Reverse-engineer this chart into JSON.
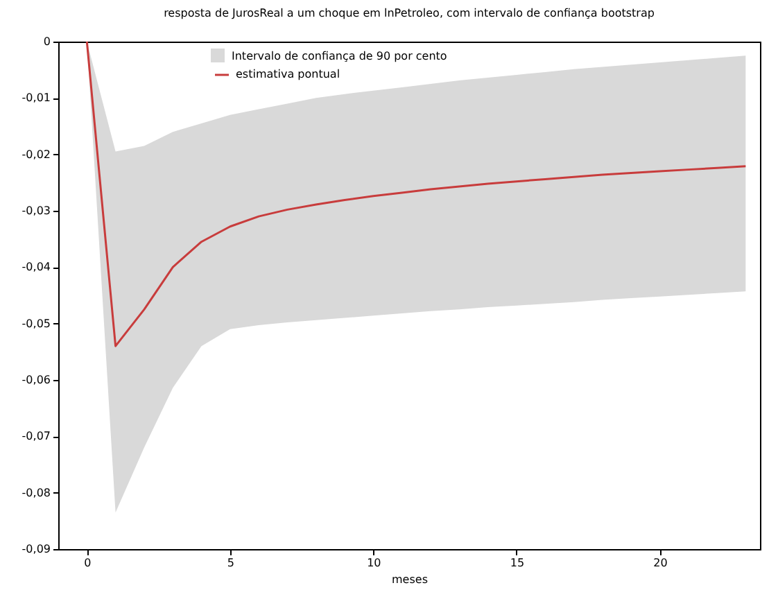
{
  "chart_data": {
    "type": "line",
    "title": "resposta de JurosReal a um choque em lnPetroleo, com intervalo de confiança bootstrap",
    "xlabel": "meses",
    "annotations": [
      "Intervalo de confiança de 90 por cento"
    ],
    "x": [
      0,
      1,
      2,
      3,
      4,
      5,
      6,
      7,
      8,
      9,
      10,
      11,
      12,
      13,
      14,
      15,
      16,
      17,
      18,
      19,
      20,
      21,
      22,
      23
    ],
    "series": [
      {
        "name": "estimativa pontual",
        "color": "#c83c3c",
        "values": [
          0,
          -0.054,
          -0.0475,
          -0.04,
          -0.0355,
          -0.0328,
          -0.031,
          -0.0298,
          -0.0289,
          -0.0281,
          -0.0274,
          -0.0268,
          -0.0262,
          -0.0257,
          -0.0252,
          -0.0248,
          -0.0244,
          -0.024,
          -0.0236,
          -0.0233,
          -0.023,
          -0.0227,
          -0.0224,
          -0.0221
        ],
        "lower": [
          0,
          -0.0835,
          -0.072,
          -0.0614,
          -0.054,
          -0.051,
          -0.0503,
          -0.0498,
          -0.0494,
          -0.049,
          -0.0486,
          -0.0482,
          -0.0478,
          -0.0475,
          -0.0471,
          -0.0468,
          -0.0465,
          -0.0462,
          -0.0458,
          -0.0455,
          -0.0452,
          -0.0449,
          -0.0446,
          -0.0443
        ],
        "upper": [
          0,
          -0.0195,
          -0.0185,
          -0.016,
          -0.0145,
          -0.013,
          -0.012,
          -0.011,
          -0.01,
          -0.0093,
          -0.0087,
          -0.0081,
          -0.0075,
          -0.0069,
          -0.0064,
          -0.0059,
          -0.0054,
          -0.0049,
          -0.0045,
          -0.0041,
          -0.0037,
          -0.0033,
          -0.0029,
          -0.0025
        ]
      }
    ],
    "xlim": [
      -1,
      23.5
    ],
    "xticks": [
      0,
      5,
      10,
      15,
      20
    ],
    "ylim": [
      -0.09,
      0
    ],
    "yticks": [
      0,
      {
        "value": -0.01,
        "label": "-0,01"
      },
      {
        "value": -0.02,
        "label": "-0,02"
      },
      {
        "value": -0.03,
        "label": "-0,03"
      },
      {
        "value": -0.04,
        "label": "-0,04"
      },
      {
        "value": -0.05,
        "label": "-0,05"
      },
      {
        "value": -0.06,
        "label": "-0,06"
      },
      {
        "value": -0.07,
        "label": "-0,07"
      },
      {
        "value": -0.08,
        "label": "-0,08"
      },
      {
        "value": -0.09,
        "label": "-0,09"
      }
    ],
    "legend": "top",
    "grid": false,
    "marker": "none",
    "line_style": "solid"
  }
}
